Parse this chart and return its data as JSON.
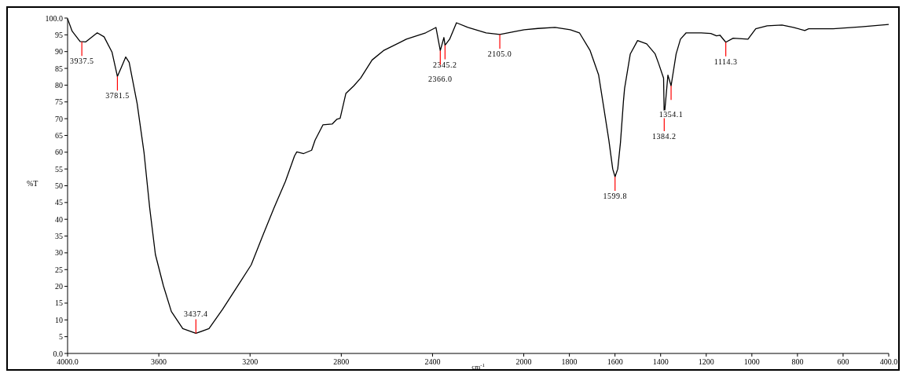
{
  "chart_data": {
    "type": "line",
    "xlabel": "cm$^{-1}$",
    "ylabel": "%T",
    "xlim": [
      4000,
      400
    ],
    "xticks": [
      {
        "value": 4000,
        "label": "4000.0"
      },
      3600,
      3200,
      2800,
      2400,
      2000,
      1800,
      1600,
      1400,
      1200,
      1000,
      800,
      600,
      {
        "value": 400,
        "label": "400.0"
      }
    ],
    "ylim": [
      0,
      100
    ],
    "yticks": [
      {
        "value": 0,
        "label": "0.0"
      },
      5,
      10,
      15,
      20,
      25,
      30,
      35,
      40,
      45,
      50,
      55,
      60,
      65,
      70,
      75,
      80,
      85,
      90,
      95,
      {
        "value": 100,
        "label": "100.0"
      }
    ],
    "series": [
      {
        "color": "#000000",
        "x": [
          4000,
          3980,
          3945,
          3920,
          3870,
          3840,
          3805,
          3781.5,
          3765,
          3745,
          3730,
          3695,
          3665,
          3640,
          3615,
          3580,
          3545,
          3495,
          3437.4,
          3380,
          3320,
          3245,
          3195,
          3145,
          3095,
          3045,
          3005,
          2995,
          2965,
          2930,
          2915,
          2880,
          2840,
          2820,
          2805,
          2780,
          2745,
          2715,
          2665,
          2615,
          2515,
          2430,
          2385,
          2366,
          2350,
          2345.2,
          2325,
          2295,
          2245,
          2165,
          2105,
          2030,
          1998,
          1938,
          1863,
          1796,
          1756,
          1709,
          1672,
          1652,
          1627,
          1610,
          1599.8,
          1588,
          1576,
          1563,
          1558,
          1533,
          1501,
          1461,
          1424,
          1409,
          1387,
          1384.2,
          1368,
          1354.1,
          1332,
          1313,
          1288,
          1222,
          1180,
          1155,
          1140,
          1114.3,
          1082,
          1017,
          983,
          933,
          868,
          818,
          768,
          751,
          644,
          520,
          400
        ],
        "values": [
          99.8,
          96.1,
          93,
          92.9,
          95.6,
          94.4,
          89.8,
          82.6,
          85.2,
          88.4,
          86.8,
          74.5,
          60,
          43.4,
          29.5,
          20.2,
          12.5,
          7.4,
          6,
          7.4,
          13.2,
          21.1,
          26.4,
          35,
          43.4,
          51.3,
          58.9,
          60.1,
          59.6,
          60.6,
          63.6,
          68.2,
          68.4,
          69.8,
          70.1,
          77.5,
          79.8,
          82.1,
          87.5,
          90.3,
          93.7,
          95.6,
          97.2,
          90.3,
          94.2,
          91.9,
          93.7,
          98.6,
          97.2,
          95.6,
          95.1,
          96.1,
          96.5,
          96.9,
          97.2,
          96.5,
          95.6,
          90.3,
          83.1,
          74.5,
          63.6,
          55,
          52.7,
          55,
          62.9,
          75.2,
          79,
          89.3,
          93.3,
          92.3,
          89.3,
          86.5,
          82.1,
          70.5,
          83,
          79.8,
          89.3,
          93.7,
          95.6,
          95.6,
          95.4,
          94.7,
          94.9,
          92.8,
          94,
          93.7,
          96.8,
          97.7,
          97.9,
          97.2,
          96.3,
          96.8,
          96.8,
          97.4,
          98.1
        ]
      }
    ],
    "annotations": [
      {
        "text": "3937.5",
        "x": 3937.5,
        "y": 92.9
      },
      {
        "text": "3781.5",
        "x": 3781.5,
        "y": 82.6
      },
      {
        "text": "3437.4",
        "x": 3437.4,
        "y": 6
      },
      {
        "text": "2345.2",
        "x": 2345.2,
        "y": 91.9
      },
      {
        "text": "2366.0",
        "x": 2366,
        "y": 90.3
      },
      {
        "text": "2105.0",
        "x": 2105,
        "y": 95.1
      },
      {
        "text": "1599.8",
        "x": 1599.8,
        "y": 52.7
      },
      {
        "text": "1384.2",
        "x": 1384.2,
        "y": 70.5
      },
      {
        "text": "1354.1",
        "x": 1354.1,
        "y": 79.8
      },
      {
        "text": "1114.3",
        "x": 1114.3,
        "y": 92.8
      }
    ]
  }
}
